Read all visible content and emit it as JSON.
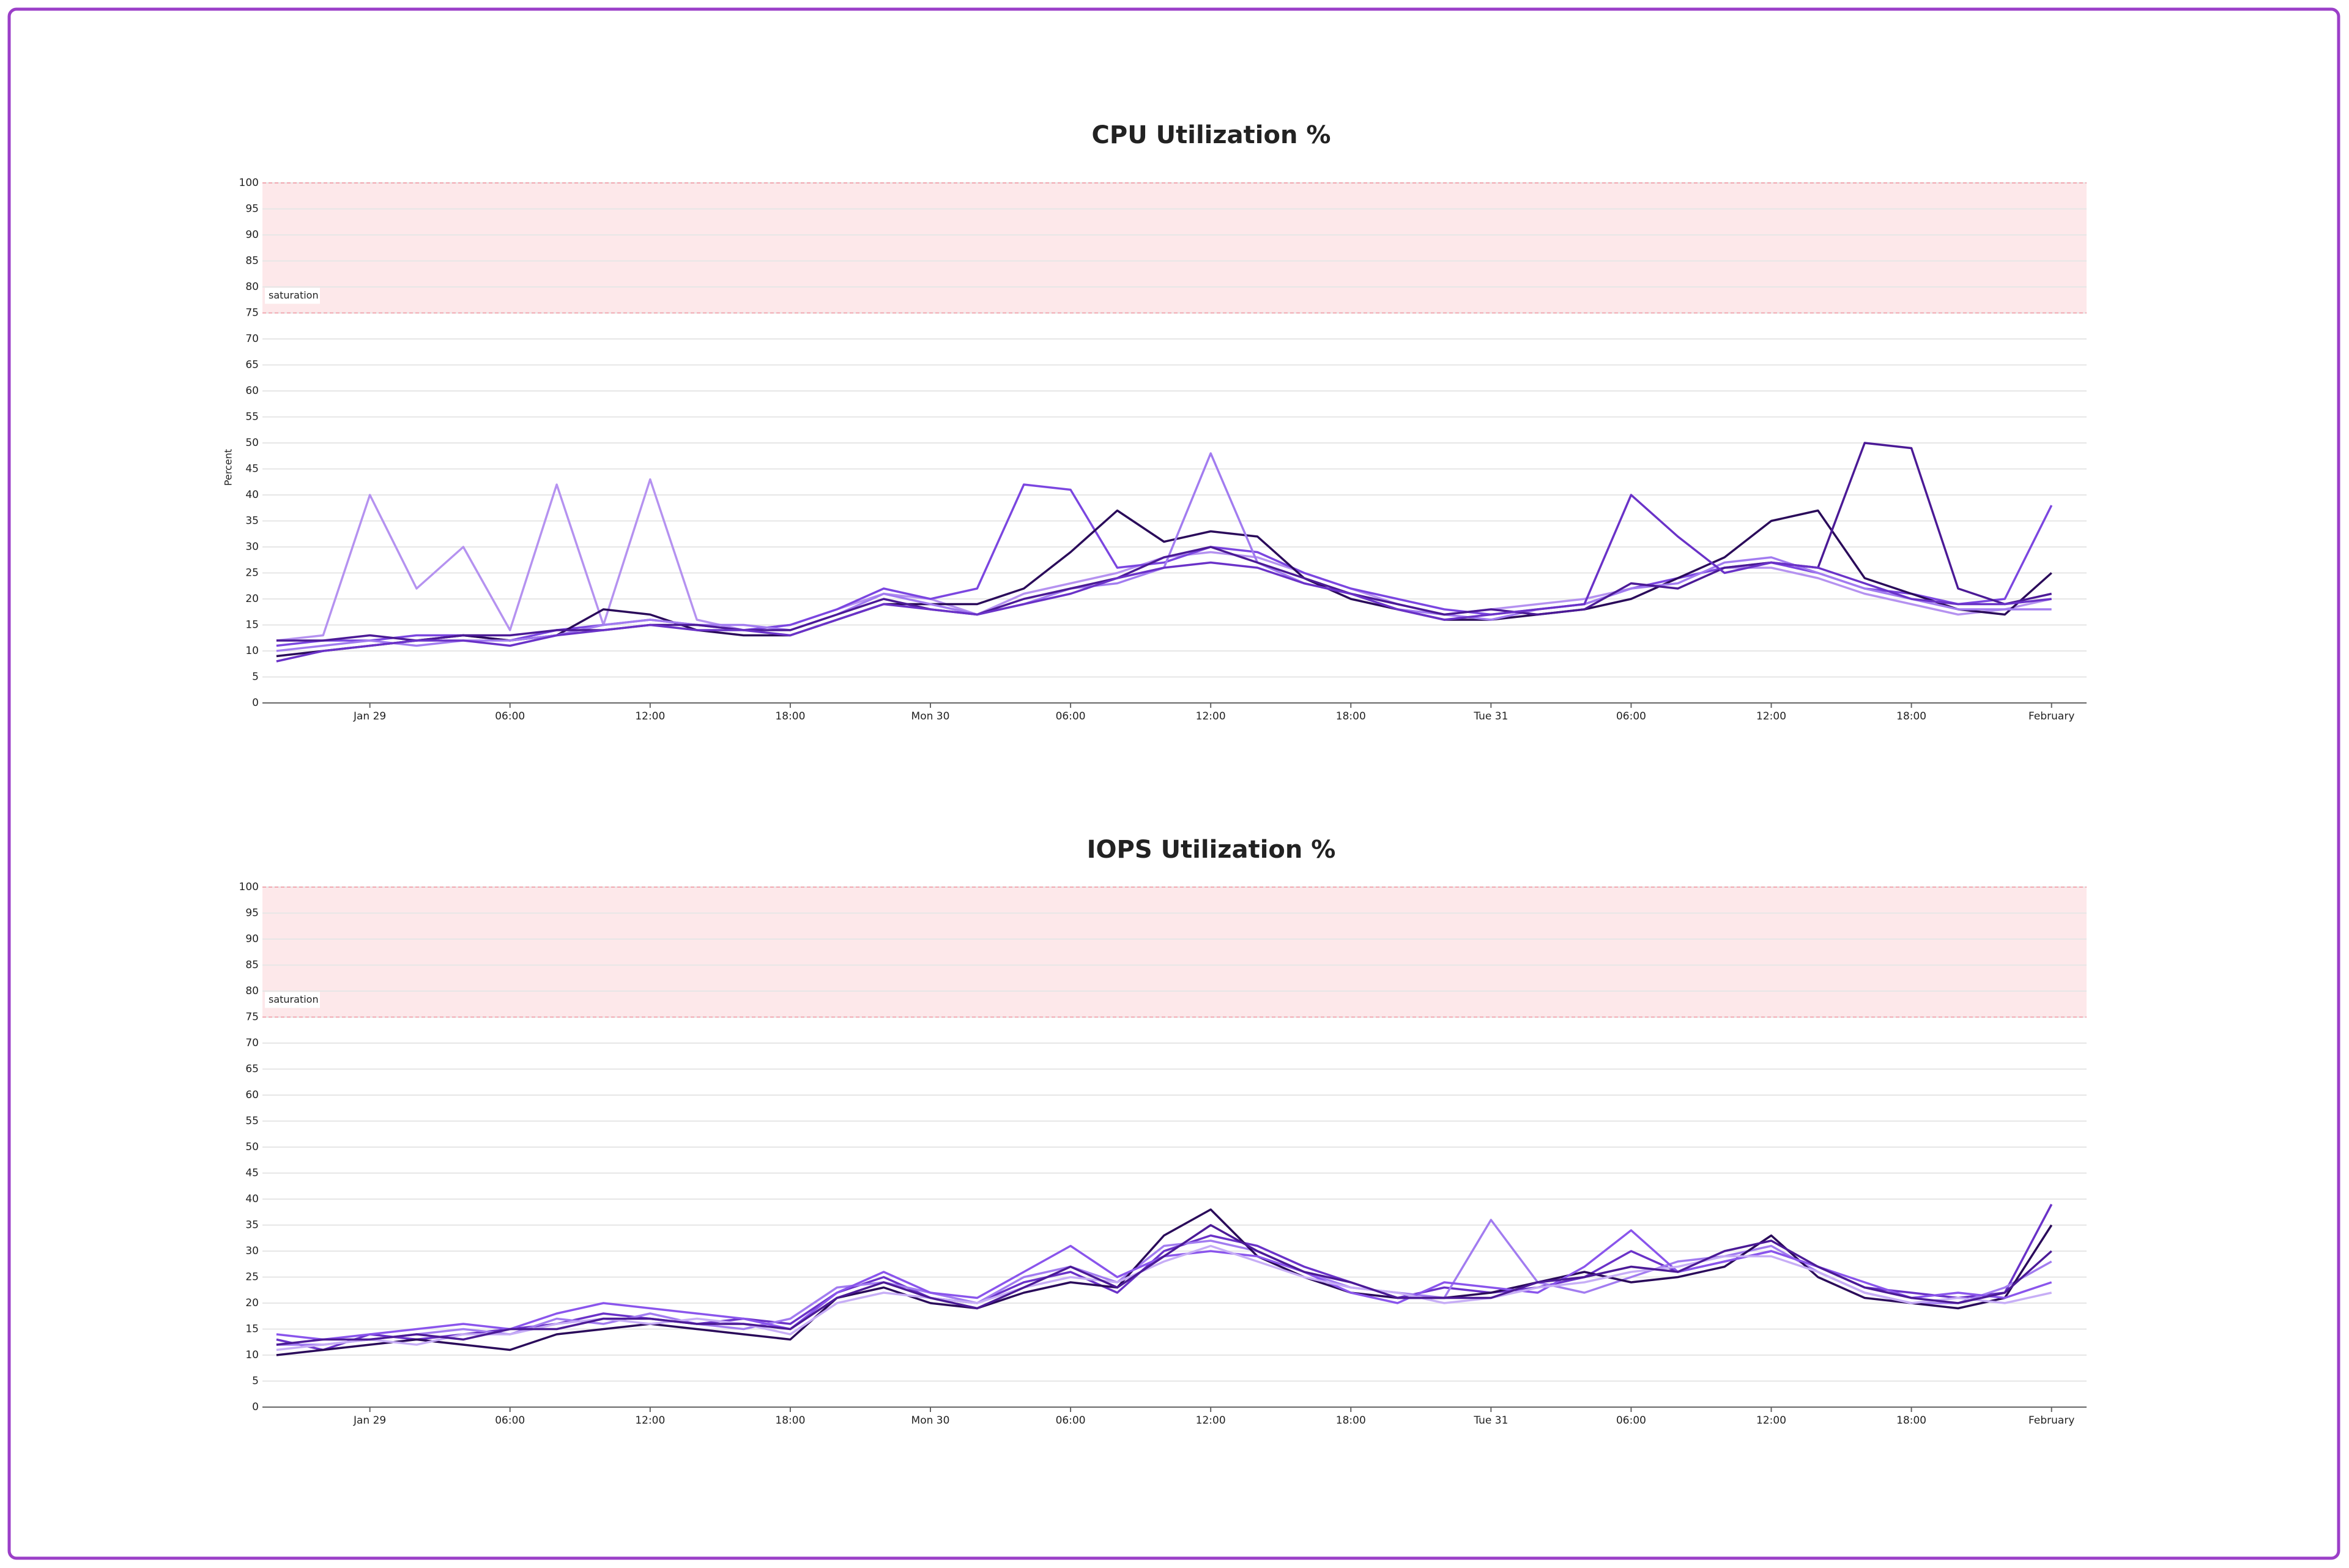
{
  "chart_data": [
    {
      "type": "line",
      "title": "CPU Utilization %",
      "ylabel": "Percent",
      "saturation_band": {
        "label": "saturation",
        "from": 75,
        "to": 100,
        "color": "#fde8ea"
      },
      "x": [
        -4,
        -2,
        0,
        2,
        4,
        6,
        8,
        10,
        12,
        14,
        16,
        18,
        20,
        22,
        24,
        26,
        28,
        30,
        32,
        34,
        36,
        38,
        40,
        42,
        44,
        46,
        48,
        50,
        52,
        54,
        56,
        58,
        60,
        62,
        64,
        66,
        68,
        70,
        72
      ],
      "xlim": [
        -4.6,
        73.5
      ],
      "xticks": [
        {
          "value": 0,
          "label": "Jan 29"
        },
        {
          "value": 6,
          "label": "06:00"
        },
        {
          "value": 12,
          "label": "12:00"
        },
        {
          "value": 18,
          "label": "18:00"
        },
        {
          "value": 24,
          "label": "Mon 30"
        },
        {
          "value": 30,
          "label": "06:00"
        },
        {
          "value": 36,
          "label": "12:00"
        },
        {
          "value": 42,
          "label": "18:00"
        },
        {
          "value": 48,
          "label": "Tue 31"
        },
        {
          "value": 54,
          "label": "06:00"
        },
        {
          "value": 60,
          "label": "12:00"
        },
        {
          "value": 66,
          "label": "18:00"
        },
        {
          "value": 72,
          "label": "February"
        }
      ],
      "ylim": [
        0,
        100
      ],
      "yticks": [
        0,
        5,
        10,
        15,
        20,
        25,
        30,
        35,
        40,
        45,
        50,
        55,
        60,
        65,
        70,
        75,
        80,
        85,
        90,
        95,
        100
      ],
      "grid": true,
      "series": [
        {
          "color": "#b592f0",
          "values": [
            12,
            13,
            40,
            22,
            30,
            14,
            42,
            15,
            43,
            16,
            14,
            15,
            18,
            21,
            20,
            17,
            21,
            23,
            25,
            28,
            29,
            28,
            25,
            22,
            19,
            17,
            18,
            19,
            20,
            22,
            24,
            26,
            26,
            24,
            21,
            19,
            17,
            18,
            20
          ]
        },
        {
          "color": "#7b46e0",
          "values": [
            11,
            12,
            12,
            13,
            13,
            12,
            14,
            15,
            16,
            15,
            14,
            15,
            18,
            22,
            20,
            22,
            42,
            41,
            26,
            27,
            30,
            29,
            25,
            22,
            20,
            18,
            17,
            18,
            19,
            22,
            24,
            26,
            27,
            25,
            22,
            21,
            19,
            20,
            38
          ]
        },
        {
          "color": "#2a0a5a",
          "values": [
            9,
            10,
            11,
            12,
            13,
            12,
            13,
            18,
            17,
            14,
            13,
            13,
            16,
            19,
            19,
            19,
            22,
            29,
            37,
            31,
            33,
            32,
            24,
            20,
            18,
            16,
            16,
            17,
            18,
            20,
            24,
            28,
            35,
            37,
            24,
            21,
            18,
            17,
            25
          ]
        },
        {
          "color": "#a27cf0",
          "values": [
            10,
            11,
            12,
            11,
            12,
            12,
            13,
            15,
            16,
            15,
            15,
            14,
            17,
            21,
            19,
            17,
            19,
            22,
            23,
            26,
            48,
            27,
            23,
            21,
            18,
            17,
            16,
            18,
            19,
            22,
            23,
            27,
            28,
            25,
            22,
            20,
            18,
            18,
            18
          ]
        },
        {
          "color": "#4b1a96",
          "values": [
            12,
            12,
            13,
            12,
            13,
            13,
            14,
            14,
            15,
            15,
            14,
            14,
            17,
            20,
            18,
            17,
            20,
            22,
            24,
            28,
            30,
            27,
            24,
            21,
            19,
            17,
            18,
            17,
            18,
            23,
            22,
            26,
            27,
            26,
            50,
            49,
            22,
            19,
            21
          ]
        },
        {
          "color": "#6a32c8",
          "values": [
            8,
            10,
            11,
            12,
            12,
            11,
            13,
            14,
            15,
            14,
            14,
            13,
            16,
            19,
            18,
            17,
            19,
            21,
            24,
            26,
            27,
            26,
            23,
            21,
            18,
            16,
            17,
            18,
            19,
            40,
            32,
            25,
            27,
            26,
            23,
            20,
            19,
            19,
            20
          ]
        }
      ]
    },
    {
      "type": "line",
      "title": "IOPS Utilization %",
      "saturation_band": {
        "label": "saturation",
        "from": 75,
        "to": 100,
        "color": "#fde8ea"
      },
      "x": [
        -4,
        -2,
        0,
        2,
        4,
        6,
        8,
        10,
        12,
        14,
        16,
        18,
        20,
        22,
        24,
        26,
        28,
        30,
        32,
        34,
        36,
        38,
        40,
        42,
        44,
        46,
        48,
        50,
        52,
        54,
        56,
        58,
        60,
        62,
        64,
        66,
        68,
        70,
        72
      ],
      "xlim": [
        -4.6,
        73.5
      ],
      "xticks": [
        {
          "value": 0,
          "label": "Jan 29"
        },
        {
          "value": 6,
          "label": "06:00"
        },
        {
          "value": 12,
          "label": "12:00"
        },
        {
          "value": 18,
          "label": "18:00"
        },
        {
          "value": 24,
          "label": "Mon 30"
        },
        {
          "value": 30,
          "label": "06:00"
        },
        {
          "value": 36,
          "label": "12:00"
        },
        {
          "value": 42,
          "label": "18:00"
        },
        {
          "value": 48,
          "label": "Tue 31"
        },
        {
          "value": 54,
          "label": "06:00"
        },
        {
          "value": 60,
          "label": "12:00"
        },
        {
          "value": 66,
          "label": "18:00"
        },
        {
          "value": 72,
          "label": "February"
        }
      ],
      "ylim": [
        0,
        100
      ],
      "yticks": [
        0,
        5,
        10,
        15,
        20,
        25,
        30,
        35,
        40,
        45,
        50,
        55,
        60,
        65,
        70,
        75,
        80,
        85,
        90,
        95,
        100
      ],
      "grid": true,
      "series": [
        {
          "color": "#6a32c8",
          "values": [
            13,
            11,
            14,
            13,
            14,
            15,
            16,
            18,
            17,
            16,
            17,
            16,
            22,
            25,
            21,
            20,
            24,
            26,
            22,
            30,
            33,
            31,
            27,
            24,
            21,
            23,
            22,
            23,
            25,
            30,
            26,
            28,
            30,
            27,
            23,
            22,
            21,
            22,
            39
          ]
        },
        {
          "color": "#a27cf0",
          "values": [
            12,
            12,
            13,
            14,
            15,
            14,
            17,
            16,
            18,
            16,
            15,
            17,
            23,
            24,
            22,
            20,
            25,
            27,
            24,
            31,
            32,
            30,
            26,
            23,
            22,
            21,
            36,
            24,
            22,
            25,
            28,
            29,
            31,
            26,
            22,
            20,
            20,
            23,
            28
          ]
        },
        {
          "color": "#2a0a5a",
          "values": [
            10,
            11,
            12,
            13,
            12,
            11,
            14,
            15,
            16,
            15,
            14,
            13,
            21,
            23,
            20,
            19,
            22,
            24,
            23,
            33,
            38,
            29,
            25,
            22,
            21,
            21,
            22,
            24,
            26,
            24,
            25,
            27,
            33,
            25,
            21,
            20,
            19,
            21,
            35
          ]
        },
        {
          "color": "#8a55ec",
          "values": [
            14,
            13,
            14,
            15,
            16,
            15,
            18,
            20,
            19,
            18,
            17,
            15,
            22,
            26,
            22,
            21,
            26,
            31,
            25,
            29,
            30,
            29,
            26,
            22,
            20,
            24,
            23,
            22,
            27,
            34,
            26,
            28,
            30,
            27,
            24,
            21,
            22,
            21,
            24
          ]
        },
        {
          "color": "#c7aef6",
          "values": [
            11,
            12,
            13,
            12,
            14,
            14,
            16,
            17,
            16,
            17,
            16,
            14,
            20,
            22,
            21,
            20,
            23,
            25,
            24,
            28,
            31,
            28,
            25,
            23,
            22,
            20,
            21,
            23,
            24,
            26,
            27,
            29,
            29,
            26,
            22,
            20,
            21,
            20,
            22
          ]
        },
        {
          "color": "#4b1a96",
          "values": [
            12,
            13,
            13,
            14,
            13,
            15,
            15,
            17,
            17,
            16,
            16,
            15,
            21,
            24,
            21,
            19,
            23,
            27,
            23,
            29,
            35,
            30,
            26,
            24,
            21,
            21,
            21,
            24,
            25,
            27,
            26,
            30,
            32,
            27,
            23,
            21,
            20,
            22,
            30
          ]
        }
      ]
    }
  ]
}
